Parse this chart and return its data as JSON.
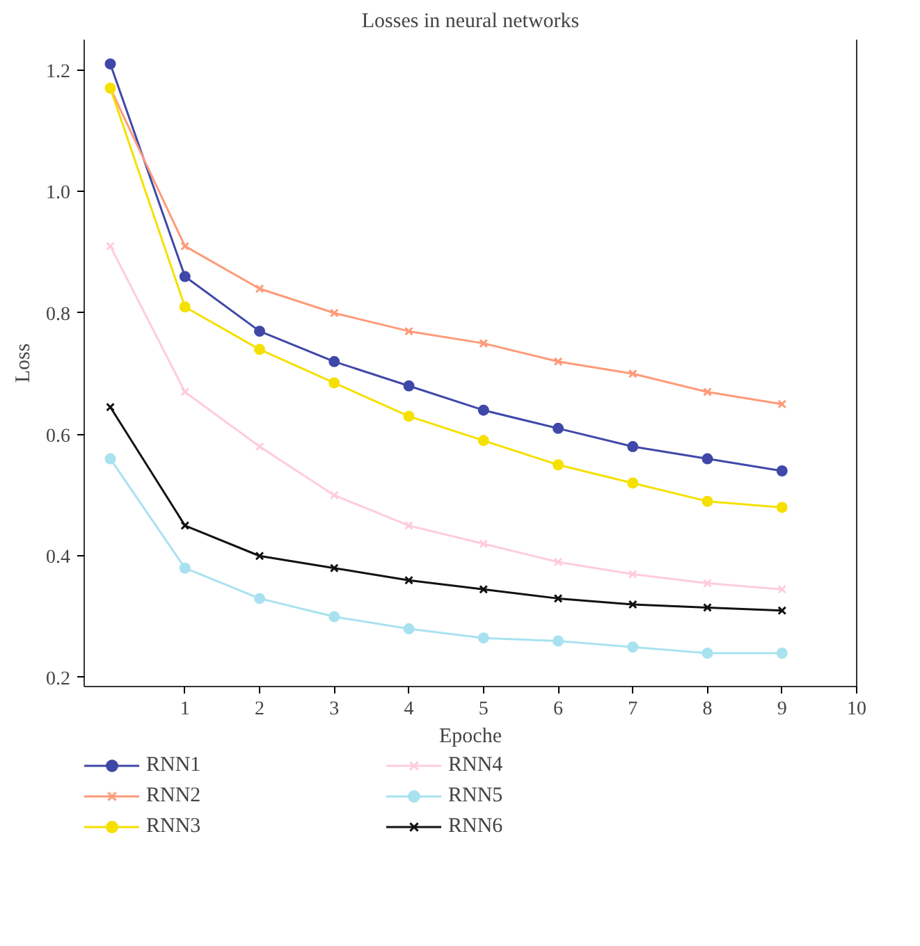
{
  "chart_data": {
    "type": "line",
    "title": "Losses in neural networks",
    "xlabel": "Epoche",
    "ylabel": "Loss",
    "x": [
      0,
      1,
      2,
      3,
      4,
      5,
      6,
      7,
      8,
      9
    ],
    "series": [
      {
        "name": "RNN1",
        "color": "#3f48a8",
        "marker": "circle",
        "values": [
          1.21,
          0.86,
          0.77,
          0.72,
          0.68,
          0.64,
          0.61,
          0.58,
          0.56,
          0.54
        ]
      },
      {
        "name": "RNN2",
        "color": "#ff9a78",
        "marker": "cross",
        "values": [
          1.17,
          0.91,
          0.84,
          0.8,
          0.77,
          0.75,
          0.72,
          0.7,
          0.67,
          0.65
        ]
      },
      {
        "name": "RNN3",
        "color": "#f5e000",
        "marker": "circle",
        "values": [
          1.17,
          0.81,
          0.74,
          0.685,
          0.63,
          0.59,
          0.55,
          0.52,
          0.49,
          0.48
        ]
      },
      {
        "name": "RNN4",
        "color": "#ffccdd",
        "marker": "cross",
        "values": [
          0.91,
          0.67,
          0.58,
          0.5,
          0.45,
          0.42,
          0.39,
          0.37,
          0.355,
          0.345
        ]
      },
      {
        "name": "RNN5",
        "color": "#a8e2f0",
        "marker": "circle",
        "values": [
          0.56,
          0.38,
          0.33,
          0.3,
          0.28,
          0.265,
          0.26,
          0.25,
          0.24,
          0.24
        ]
      },
      {
        "name": "RNN6",
        "color": "#111111",
        "marker": "cross",
        "values": [
          0.645,
          0.45,
          0.4,
          0.38,
          0.36,
          0.345,
          0.33,
          0.32,
          0.315,
          0.31
        ]
      }
    ],
    "xlim": [
      -0.35,
      10
    ],
    "xticks": [
      1,
      2,
      3,
      4,
      5,
      6,
      7,
      8,
      9,
      10
    ],
    "ylim": [
      0.185,
      1.25
    ],
    "yticks": [
      0.2,
      0.4,
      0.6,
      0.8,
      {
        "value": 1,
        "label": "1.0"
      },
      1.2
    ],
    "grid": false,
    "legend": "bottom",
    "line_style": "solid"
  }
}
